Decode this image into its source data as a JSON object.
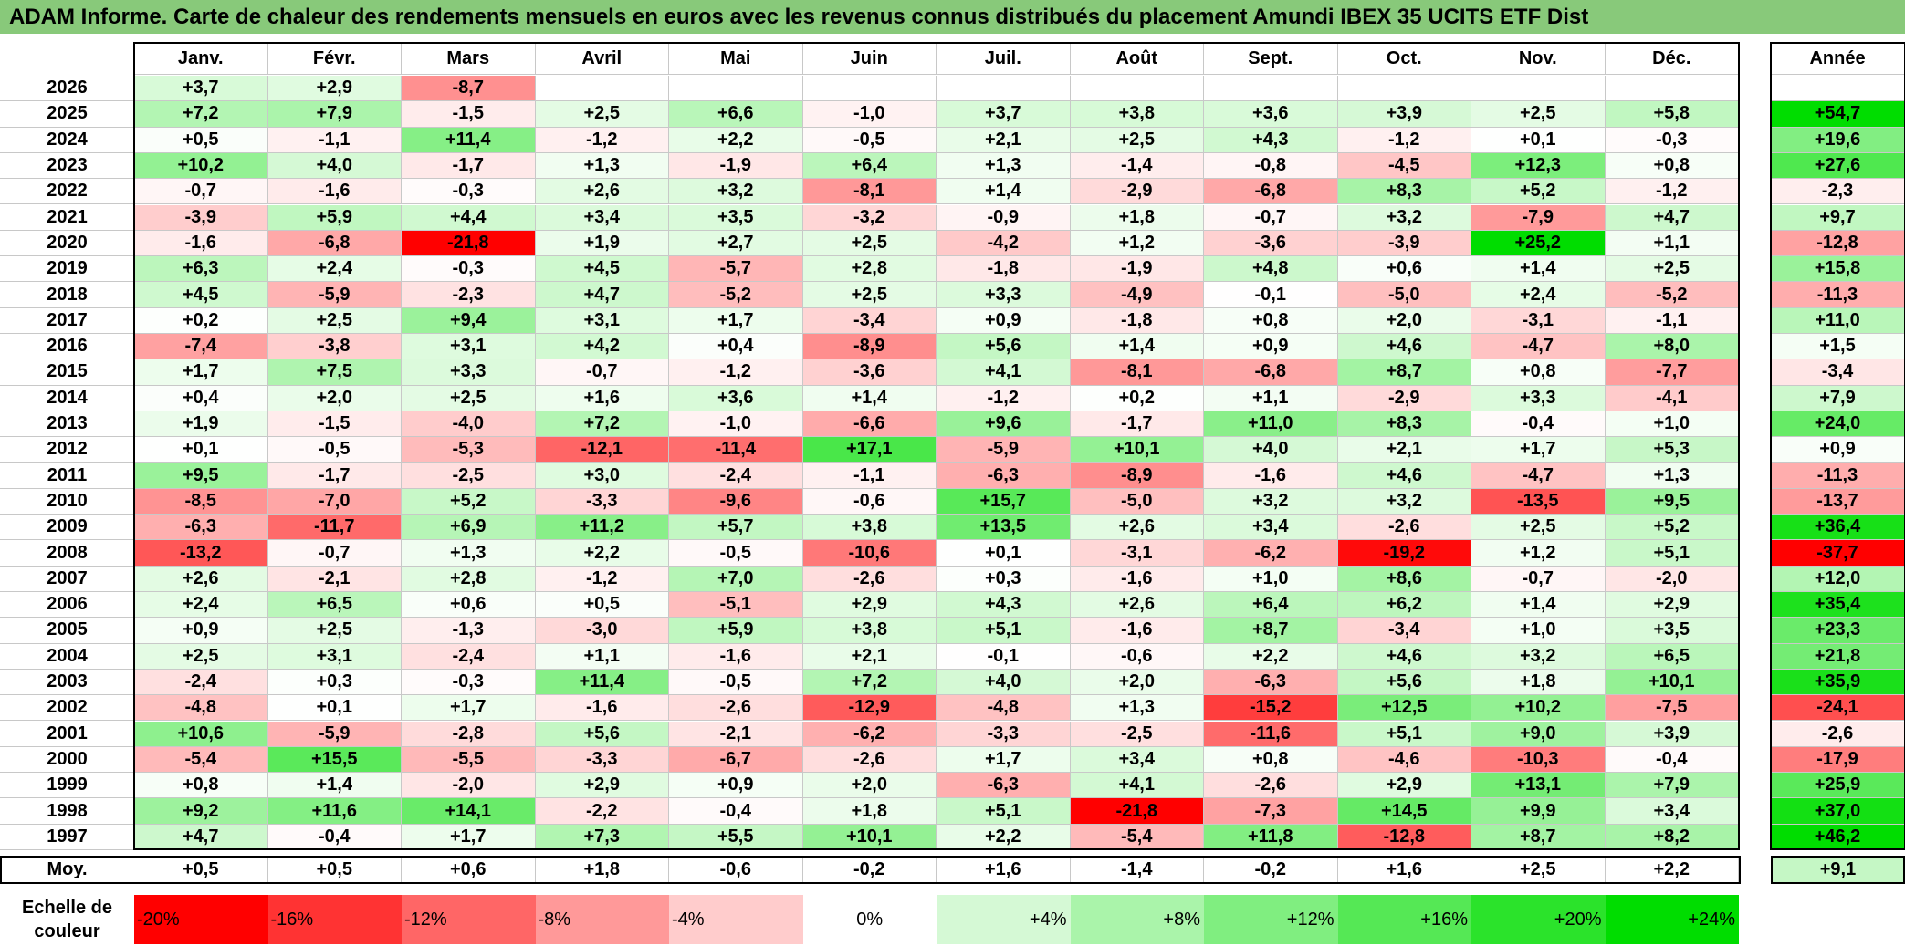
{
  "title": "ADAM Informe. Carte de chaleur des rendements mensuels en euros avec les revenus connus distribués du placement Amundi IBEX 35 UCITS ETF Dist",
  "chart_data": {
    "type": "heatmap",
    "months": [
      "Janv.",
      "Févr.",
      "Mars",
      "Avril",
      "Mai",
      "Juin",
      "Juil.",
      "Août",
      "Sept.",
      "Oct.",
      "Nov.",
      "Déc."
    ],
    "year_header": "Année",
    "rows": [
      {
        "year": "2026",
        "values": [
          "+3,7",
          "+2,9",
          "-8,7",
          "",
          "",
          "",
          "",
          "",
          "",
          "",
          "",
          ""
        ],
        "total": ""
      },
      {
        "year": "2025",
        "values": [
          "+7,2",
          "+7,9",
          "-1,5",
          "+2,5",
          "+6,6",
          "-1,0",
          "+3,7",
          "+3,8",
          "+3,6",
          "+3,9",
          "+2,5",
          "+5,8"
        ],
        "total": "+54,7"
      },
      {
        "year": "2024",
        "values": [
          "+0,5",
          "-1,1",
          "+11,4",
          "-1,2",
          "+2,2",
          "-0,5",
          "+2,1",
          "+2,5",
          "+4,3",
          "-1,2",
          "+0,1",
          "-0,3"
        ],
        "total": "+19,6"
      },
      {
        "year": "2023",
        "values": [
          "+10,2",
          "+4,0",
          "-1,7",
          "+1,3",
          "-1,9",
          "+6,4",
          "+1,3",
          "-1,4",
          "-0,8",
          "-4,5",
          "+12,3",
          "+0,8"
        ],
        "total": "+27,6"
      },
      {
        "year": "2022",
        "values": [
          "-0,7",
          "-1,6",
          "-0,3",
          "+2,6",
          "+3,2",
          "-8,1",
          "+1,4",
          "-2,9",
          "-6,8",
          "+8,3",
          "+5,2",
          "-1,2"
        ],
        "total": "-2,3"
      },
      {
        "year": "2021",
        "values": [
          "-3,9",
          "+5,9",
          "+4,4",
          "+3,4",
          "+3,5",
          "-3,2",
          "-0,9",
          "+1,8",
          "-0,7",
          "+3,2",
          "-7,9",
          "+4,7"
        ],
        "total": "+9,7"
      },
      {
        "year": "2020",
        "values": [
          "-1,6",
          "-6,8",
          "-21,8",
          "+1,9",
          "+2,7",
          "+2,5",
          "-4,2",
          "+1,2",
          "-3,6",
          "-3,9",
          "+25,2",
          "+1,1"
        ],
        "total": "-12,8"
      },
      {
        "year": "2019",
        "values": [
          "+6,3",
          "+2,4",
          "-0,3",
          "+4,5",
          "-5,7",
          "+2,8",
          "-1,8",
          "-1,9",
          "+4,8",
          "+0,6",
          "+1,4",
          "+2,5"
        ],
        "total": "+15,8"
      },
      {
        "year": "2018",
        "values": [
          "+4,5",
          "-5,9",
          "-2,3",
          "+4,7",
          "-5,2",
          "+2,5",
          "+3,3",
          "-4,9",
          "-0,1",
          "-5,0",
          "+2,4",
          "-5,2"
        ],
        "total": "-11,3"
      },
      {
        "year": "2017",
        "values": [
          "+0,2",
          "+2,5",
          "+9,4",
          "+3,1",
          "+1,7",
          "-3,4",
          "+0,9",
          "-1,8",
          "+0,8",
          "+2,0",
          "-3,1",
          "-1,1"
        ],
        "total": "+11,0"
      },
      {
        "year": "2016",
        "values": [
          "-7,4",
          "-3,8",
          "+3,1",
          "+4,2",
          "+0,4",
          "-8,9",
          "+5,6",
          "+1,4",
          "+0,9",
          "+4,6",
          "-4,7",
          "+8,0"
        ],
        "total": "+1,5"
      },
      {
        "year": "2015",
        "values": [
          "+1,7",
          "+7,5",
          "+3,3",
          "-0,7",
          "-1,2",
          "-3,6",
          "+4,1",
          "-8,1",
          "-6,8",
          "+8,7",
          "+0,8",
          "-7,7"
        ],
        "total": "-3,4"
      },
      {
        "year": "2014",
        "values": [
          "+0,4",
          "+2,0",
          "+2,5",
          "+1,6",
          "+3,6",
          "+1,4",
          "-1,2",
          "+0,2",
          "+1,1",
          "-2,9",
          "+3,3",
          "-4,1"
        ],
        "total": "+7,9"
      },
      {
        "year": "2013",
        "values": [
          "+1,9",
          "-1,5",
          "-4,0",
          "+7,2",
          "-1,0",
          "-6,6",
          "+9,6",
          "-1,7",
          "+11,0",
          "+8,3",
          "-0,4",
          "+1,0"
        ],
        "total": "+24,0"
      },
      {
        "year": "2012",
        "values": [
          "+0,1",
          "-0,5",
          "-5,3",
          "-12,1",
          "-11,4",
          "+17,1",
          "-5,9",
          "+10,1",
          "+4,0",
          "+2,1",
          "+1,7",
          "+5,3"
        ],
        "total": "+0,9"
      },
      {
        "year": "2011",
        "values": [
          "+9,5",
          "-1,7",
          "-2,5",
          "+3,0",
          "-2,4",
          "-1,1",
          "-6,3",
          "-8,9",
          "-1,6",
          "+4,6",
          "-4,7",
          "+1,3"
        ],
        "total": "-11,3"
      },
      {
        "year": "2010",
        "values": [
          "-8,5",
          "-7,0",
          "+5,2",
          "-3,3",
          "-9,6",
          "-0,6",
          "+15,7",
          "-5,0",
          "+3,2",
          "+3,2",
          "-13,5",
          "+9,5"
        ],
        "total": "-13,7"
      },
      {
        "year": "2009",
        "values": [
          "-6,3",
          "-11,7",
          "+6,9",
          "+11,2",
          "+5,7",
          "+3,8",
          "+13,5",
          "+2,6",
          "+3,4",
          "-2,6",
          "+2,5",
          "+5,2"
        ],
        "total": "+36,4"
      },
      {
        "year": "2008",
        "values": [
          "-13,2",
          "-0,7",
          "+1,3",
          "+2,2",
          "-0,5",
          "-10,6",
          "+0,1",
          "-3,1",
          "-6,2",
          "-19,2",
          "+1,2",
          "+5,1"
        ],
        "total": "-37,7"
      },
      {
        "year": "2007",
        "values": [
          "+2,6",
          "-2,1",
          "+2,8",
          "-1,2",
          "+7,0",
          "-2,6",
          "+0,3",
          "-1,6",
          "+1,0",
          "+8,6",
          "-0,7",
          "-2,0"
        ],
        "total": "+12,0"
      },
      {
        "year": "2006",
        "values": [
          "+2,4",
          "+6,5",
          "+0,6",
          "+0,5",
          "-5,1",
          "+2,9",
          "+4,3",
          "+2,6",
          "+6,4",
          "+6,2",
          "+1,4",
          "+2,9"
        ],
        "total": "+35,4"
      },
      {
        "year": "2005",
        "values": [
          "+0,9",
          "+2,5",
          "-1,3",
          "-3,0",
          "+5,9",
          "+3,8",
          "+5,1",
          "-1,6",
          "+8,7",
          "-3,4",
          "+1,0",
          "+3,5"
        ],
        "total": "+23,3"
      },
      {
        "year": "2004",
        "values": [
          "+2,5",
          "+3,1",
          "-2,4",
          "+1,1",
          "-1,6",
          "+2,1",
          "-0,1",
          "-0,6",
          "+2,2",
          "+4,6",
          "+3,2",
          "+6,5"
        ],
        "total": "+21,8"
      },
      {
        "year": "2003",
        "values": [
          "-2,4",
          "+0,3",
          "-0,3",
          "+11,4",
          "-0,5",
          "+7,2",
          "+4,0",
          "+2,0",
          "-6,3",
          "+5,6",
          "+1,8",
          "+10,1"
        ],
        "total": "+35,9"
      },
      {
        "year": "2002",
        "values": [
          "-4,8",
          "+0,1",
          "+1,7",
          "-1,6",
          "-2,6",
          "-12,9",
          "-4,8",
          "+1,3",
          "-15,2",
          "+12,5",
          "+10,2",
          "-7,5"
        ],
        "total": "-24,1"
      },
      {
        "year": "2001",
        "values": [
          "+10,6",
          "-5,9",
          "-2,8",
          "+5,6",
          "-2,1",
          "-6,2",
          "-3,3",
          "-2,5",
          "-11,6",
          "+5,1",
          "+9,0",
          "+3,9"
        ],
        "total": "-2,6"
      },
      {
        "year": "2000",
        "values": [
          "-5,4",
          "+15,5",
          "-5,5",
          "-3,3",
          "-6,7",
          "-2,6",
          "+1,7",
          "+3,4",
          "+0,8",
          "-4,6",
          "-10,3",
          "-0,4"
        ],
        "total": "-17,9"
      },
      {
        "year": "1999",
        "values": [
          "+0,8",
          "+1,4",
          "-2,0",
          "+2,9",
          "+0,9",
          "+2,0",
          "-6,3",
          "+4,1",
          "-2,6",
          "+2,9",
          "+13,1",
          "+7,9"
        ],
        "total": "+25,9"
      },
      {
        "year": "1998",
        "values": [
          "+9,2",
          "+11,6",
          "+14,1",
          "-2,2",
          "-0,4",
          "+1,8",
          "+5,1",
          "-21,8",
          "-7,3",
          "+14,5",
          "+9,9",
          "+3,4"
        ],
        "total": "+37,0"
      },
      {
        "year": "1997",
        "values": [
          "+4,7",
          "-0,4",
          "+1,7",
          "+7,3",
          "+5,5",
          "+10,1",
          "+2,2",
          "-5,4",
          "+11,8",
          "-12,8",
          "+8,7",
          "+8,2"
        ],
        "total": "+46,2"
      }
    ],
    "average": {
      "label": "Moy.",
      "values": [
        "+0,5",
        "+0,5",
        "+0,6",
        "+1,8",
        "-0,6",
        "-0,2",
        "+1,6",
        "-1,4",
        "-0,2",
        "+1,6",
        "+2,5",
        "+2,2"
      ],
      "total": "+9,1"
    },
    "scale": {
      "label_line1": "Echelle de",
      "label_line2": "couleur",
      "stops": [
        "-20%",
        "-16%",
        "-12%",
        "-8%",
        "-4%",
        "0%",
        "+4%",
        "+8%",
        "+12%",
        "+16%",
        "+20%",
        "+24%"
      ],
      "stop_values": [
        -20,
        -16,
        -12,
        -8,
        -4,
        0,
        4,
        8,
        12,
        16,
        20,
        24
      ]
    },
    "colors": {
      "negative": "#ff0000",
      "neutral": "#ffffff",
      "positive": "#00dd00"
    }
  }
}
